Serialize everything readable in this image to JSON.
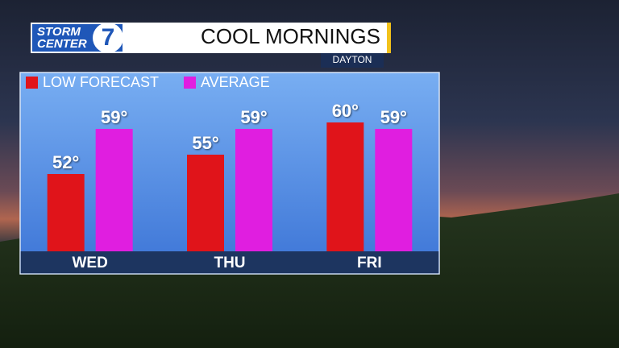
{
  "logo": {
    "line1": "STORM",
    "line2": "CENTER",
    "number": "7"
  },
  "chart_data": {
    "type": "bar",
    "title": "COOL MORNINGS",
    "subtitle": "DAYTON",
    "categories": [
      "WED",
      "THU",
      "FRI"
    ],
    "series": [
      {
        "name": "LOW FORECAST",
        "color": "#e0141a",
        "values": [
          52,
          55,
          60
        ],
        "value_labels": [
          "52°",
          "55°",
          "60°"
        ]
      },
      {
        "name": "AVERAGE",
        "color": "#e01ee0",
        "values": [
          59,
          59,
          59
        ],
        "value_labels": [
          "59°",
          "59°",
          "59°"
        ]
      }
    ],
    "ylim": [
      40,
      62
    ]
  }
}
